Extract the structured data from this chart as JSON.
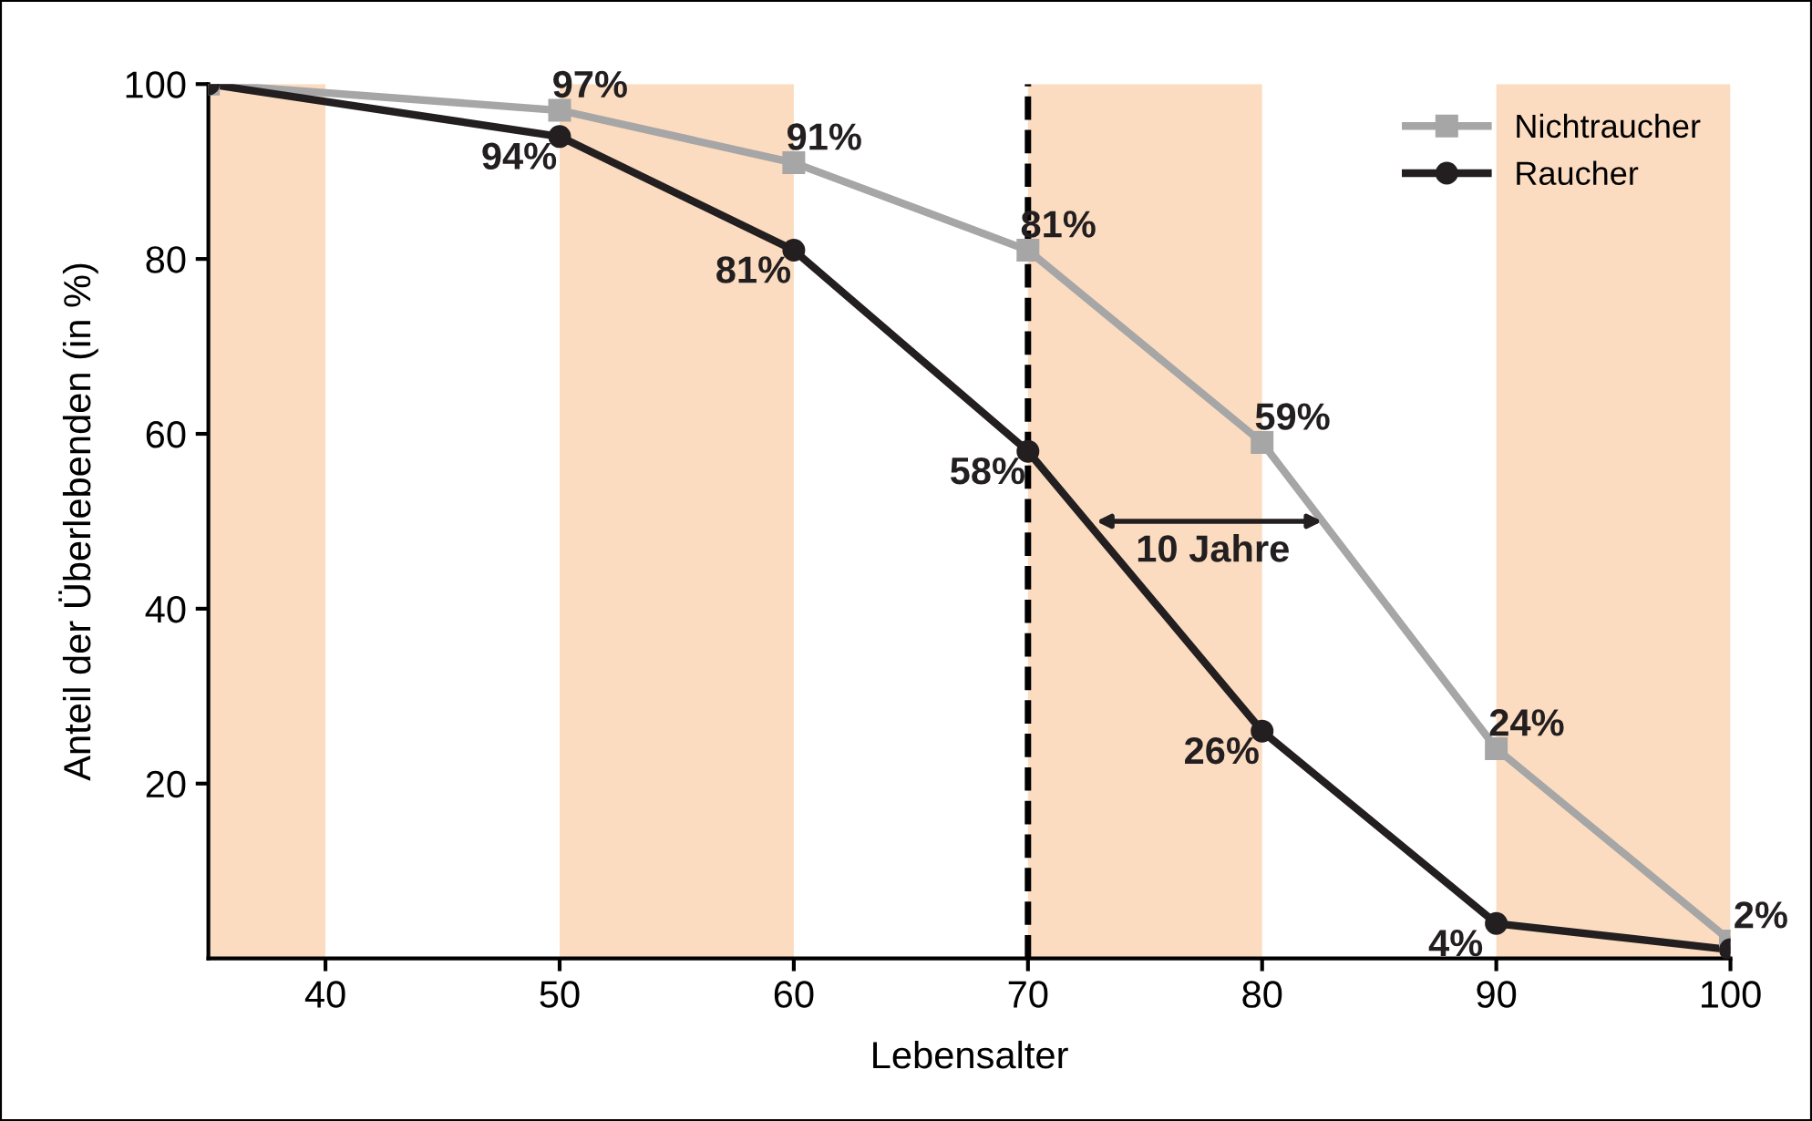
{
  "chart_data": {
    "type": "line",
    "xlabel": "Lebensalter",
    "ylabel": "Anteil der Überlebenden (in %)",
    "xlim": [
      35,
      100
    ],
    "xticks": [
      40,
      50,
      60,
      70,
      80,
      90,
      100
    ],
    "ylim": [
      0,
      100
    ],
    "yticks": [
      20,
      40,
      60,
      80,
      100
    ],
    "grid": false,
    "legend": "top right",
    "series": [
      {
        "name": "Nichtraucher",
        "color": "#a6a6a6",
        "marker": "square",
        "x": [
          35,
          50,
          60,
          70,
          80,
          90,
          100
        ],
        "values": [
          100,
          97,
          91,
          81,
          59,
          24,
          2
        ],
        "value_labels": [
          null,
          "97%",
          "91%",
          "81%",
          "59%",
          "24%",
          "2%"
        ]
      },
      {
        "name": "Raucher",
        "color": "#231f20",
        "marker": "circle",
        "x": [
          35,
          50,
          60,
          70,
          80,
          90,
          100
        ],
        "values": [
          100,
          94,
          81,
          58,
          26,
          4,
          1
        ],
        "value_labels": [
          null,
          "94%",
          "81%",
          "58%",
          "26%",
          "4%",
          null
        ]
      }
    ],
    "bands": [
      {
        "axis": "x",
        "from": 35,
        "to": 40,
        "color": "#fcdcc0"
      },
      {
        "axis": "x",
        "from": 50,
        "to": 60,
        "color": "#fcdcc0"
      },
      {
        "axis": "x",
        "from": 70,
        "to": 80,
        "color": "#fcdcc0"
      },
      {
        "axis": "x",
        "from": 90,
        "to": 100,
        "color": "#fcdcc0"
      }
    ],
    "ref_lines": [
      {
        "axis": "x",
        "value": 70,
        "color": "#000000",
        "line_style": "dashed"
      }
    ],
    "annotations": [
      "10 Jahre"
    ]
  }
}
